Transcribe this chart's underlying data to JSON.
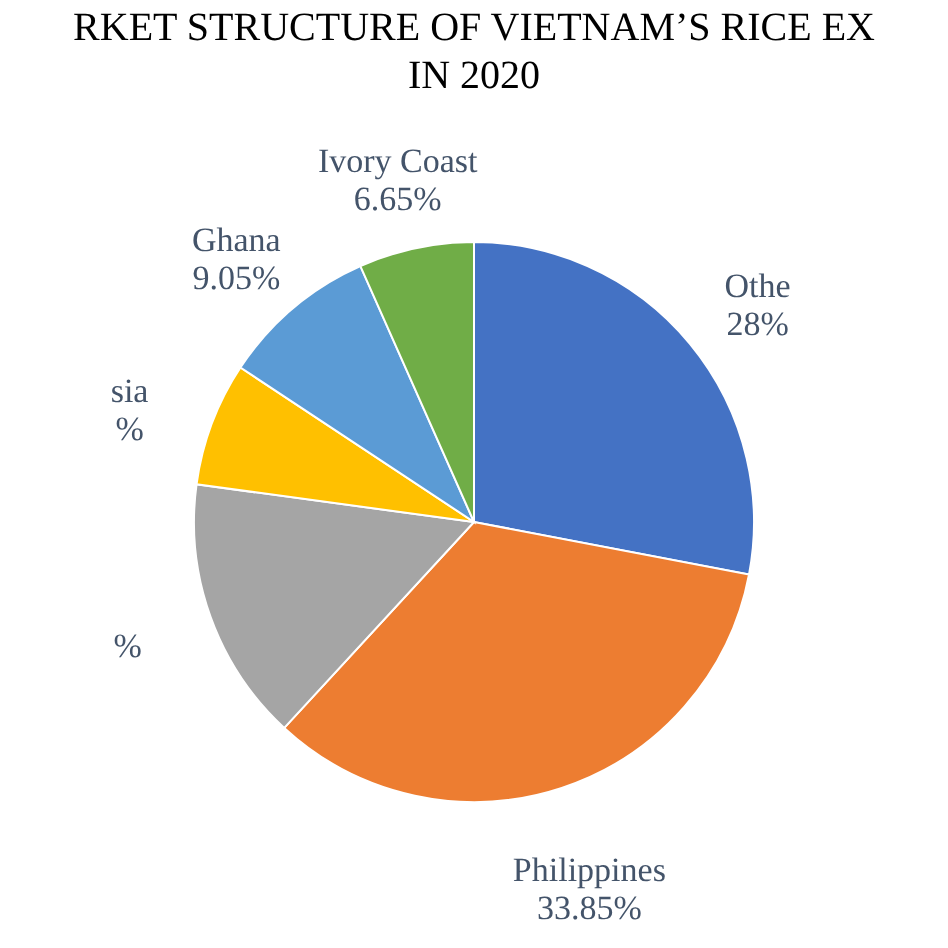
{
  "chart_data": {
    "type": "pie",
    "title": "RKET STRUCTURE OF VIETNAM’S RICE EX\nIN 2020",
    "categories": [
      "Othe",
      "Philippines",
      null,
      "sia",
      "Ghana",
      "Ivory Coast"
    ],
    "values": [
      28,
      33.85,
      15.3,
      7.15,
      9.05,
      6.65
    ],
    "value_labels": [
      "28%",
      "33.85%",
      "%",
      "%",
      "9.05%",
      "6.65%"
    ],
    "colors": [
      "#4472c4",
      "#ed7d31",
      "#a5a5a5",
      "#ffc000",
      "#5b9bd5",
      "#70ad47"
    ]
  }
}
